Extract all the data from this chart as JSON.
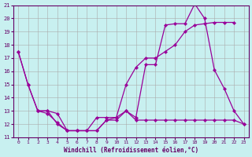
{
  "xlabel": "Windchill (Refroidissement éolien,°C)",
  "background_color": "#c8f0f0",
  "line_color": "#990099",
  "grid_color": "#aaaaaa",
  "line1_x": [
    0,
    1,
    2,
    3,
    4,
    5,
    6,
    7,
    8,
    9,
    10,
    11,
    12,
    13,
    14,
    15,
    16,
    17,
    18,
    19,
    20,
    21,
    22,
    23
  ],
  "line1_y": [
    17.5,
    15.0,
    13.0,
    13.0,
    12.0,
    11.5,
    11.5,
    11.5,
    11.5,
    12.3,
    12.3,
    13.0,
    12.3,
    12.3,
    12.3,
    12.3,
    12.3,
    12.3,
    12.3,
    12.3,
    12.3,
    12.3,
    12.3,
    12.0
  ],
  "line2_x": [
    0,
    1,
    2,
    3,
    4,
    5,
    6,
    7,
    8,
    9,
    10,
    11,
    12,
    13,
    14,
    15,
    16,
    17,
    18,
    19,
    20,
    21,
    22
  ],
  "line2_y": [
    17.5,
    15.0,
    13.0,
    12.8,
    12.1,
    11.5,
    11.5,
    11.5,
    11.5,
    12.3,
    12.5,
    15.0,
    16.3,
    17.0,
    17.0,
    17.5,
    18.0,
    19.0,
    19.5,
    19.6,
    19.7,
    19.7,
    19.7
  ],
  "line3_x": [
    2,
    3,
    4,
    5,
    6,
    7,
    8,
    9,
    10,
    11,
    12,
    13,
    14,
    15,
    16,
    17,
    18,
    19,
    20,
    21,
    22,
    23
  ],
  "line3_y": [
    13.0,
    13.0,
    12.8,
    11.5,
    11.5,
    11.5,
    12.5,
    12.5,
    12.5,
    13.0,
    12.5,
    16.5,
    16.5,
    19.5,
    19.6,
    19.6,
    21.1,
    20.0,
    16.1,
    14.7,
    13.0,
    12.0
  ],
  "ylim": [
    11,
    21
  ],
  "xlim_min": -0.5,
  "xlim_max": 23.5,
  "yticks": [
    11,
    12,
    13,
    14,
    15,
    16,
    17,
    18,
    19,
    20,
    21
  ],
  "xticks": [
    0,
    1,
    2,
    3,
    4,
    5,
    6,
    7,
    8,
    9,
    10,
    11,
    12,
    13,
    14,
    15,
    16,
    17,
    18,
    19,
    20,
    21,
    22,
    23
  ]
}
